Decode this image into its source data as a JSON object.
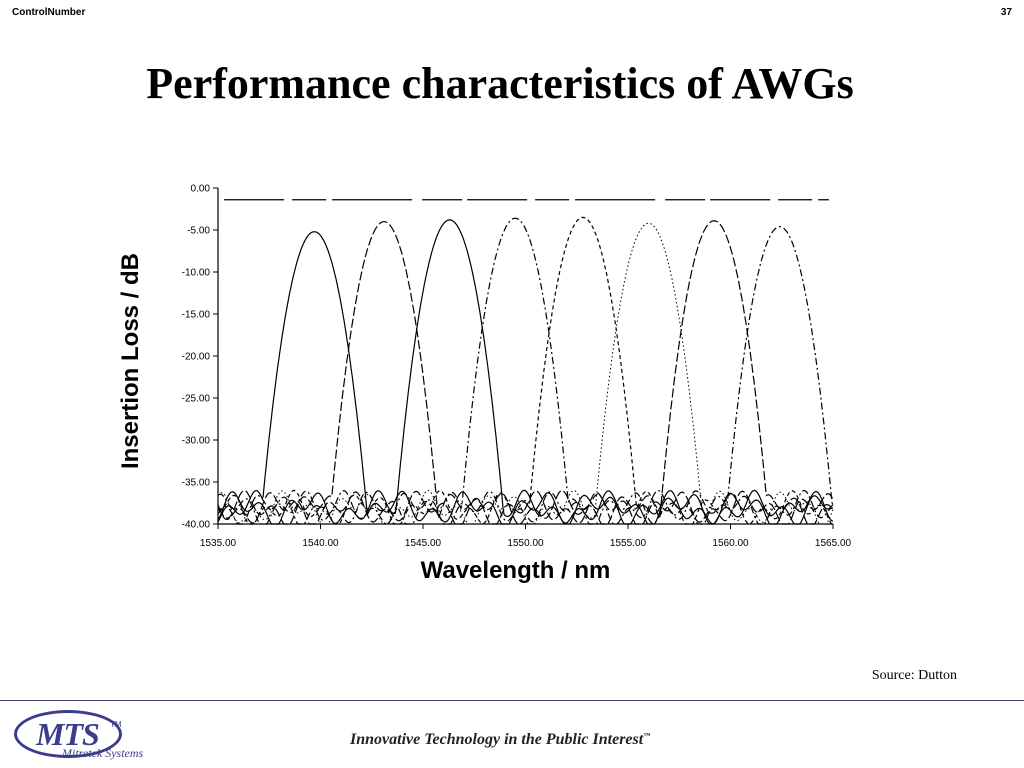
{
  "header": {
    "control_number": "ControlNumber",
    "page_number": "37"
  },
  "slide": {
    "title": "Performance characteristics of AWGs",
    "source": "Source: Dutton"
  },
  "footer": {
    "logo_text": "MTS",
    "logo_tm": "TM",
    "logo_subtitle": "Mitretek Systems",
    "tagline": "Innovative Technology in the Public Interest",
    "tagline_tm": "™"
  },
  "colors": {
    "brand": "#3b3c8c",
    "rule": "#3d3d7a",
    "ink": "#000000"
  },
  "chart_data": {
    "type": "line",
    "xlabel": "Wavelength / nm",
    "ylabel": "Insertion Loss / dB",
    "xlim": [
      1535,
      1565
    ],
    "ylim": [
      -40,
      0
    ],
    "x_ticks": [
      1535,
      1540,
      1545,
      1550,
      1555,
      1560,
      1565
    ],
    "x_tick_labels": [
      "1535.00",
      "1540.00",
      "1545.00",
      "1550.00",
      "1555.00",
      "1560.00",
      "1565.00"
    ],
    "y_ticks": [
      0,
      -5,
      -10,
      -15,
      -20,
      -25,
      -30,
      -35,
      -40
    ],
    "y_tick_labels": [
      "0.00",
      "-5.00",
      "-10.00",
      "-15.00",
      "-20.00",
      "-25.00",
      "-30.00",
      "-35.00",
      "-40.00"
    ],
    "grid": false,
    "legend": "none",
    "reference_line": {
      "y": -1.4,
      "x_start": 1535.3,
      "x_end": 1564.8
    },
    "channels": [
      {
        "center": 1539.7,
        "peak": -5.2,
        "stroke": "solid"
      },
      {
        "center": 1543.1,
        "peak": -4.0,
        "stroke": "dash-long"
      },
      {
        "center": 1546.3,
        "peak": -3.8,
        "stroke": "solid"
      },
      {
        "center": 1549.5,
        "peak": -3.6,
        "stroke": "dash-dot"
      },
      {
        "center": 1552.8,
        "peak": -3.5,
        "stroke": "dash-short"
      },
      {
        "center": 1556.0,
        "peak": -4.2,
        "stroke": "dotted"
      },
      {
        "center": 1559.2,
        "peak": -3.9,
        "stroke": "dash-long"
      },
      {
        "center": 1562.4,
        "peak": -4.6,
        "stroke": "dash-dot"
      }
    ]
  }
}
